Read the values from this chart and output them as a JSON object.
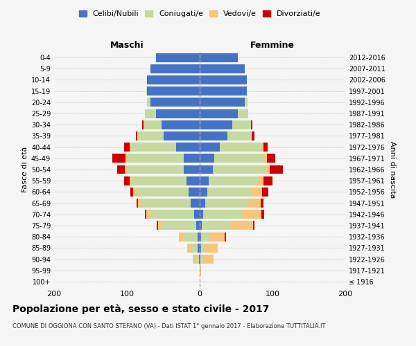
{
  "age_groups": [
    "100+",
    "95-99",
    "90-94",
    "85-89",
    "80-84",
    "75-79",
    "70-74",
    "65-69",
    "60-64",
    "55-59",
    "50-54",
    "45-49",
    "40-44",
    "35-39",
    "30-34",
    "25-29",
    "20-24",
    "15-19",
    "10-14",
    "5-9",
    "0-4"
  ],
  "birth_years": [
    "≤ 1916",
    "1917-1921",
    "1922-1926",
    "1927-1931",
    "1932-1936",
    "1937-1941",
    "1942-1946",
    "1947-1951",
    "1952-1956",
    "1957-1961",
    "1962-1966",
    "1967-1971",
    "1972-1976",
    "1977-1981",
    "1982-1986",
    "1987-1991",
    "1992-1996",
    "1997-2001",
    "2002-2006",
    "2007-2011",
    "2012-2016"
  ],
  "males": {
    "celibi": [
      0,
      0,
      1,
      3,
      3,
      5,
      8,
      12,
      15,
      18,
      22,
      22,
      32,
      50,
      52,
      60,
      68,
      72,
      72,
      68,
      60
    ],
    "coniugati": [
      0,
      0,
      4,
      8,
      18,
      48,
      60,
      68,
      72,
      75,
      78,
      78,
      62,
      35,
      25,
      15,
      4,
      1,
      0,
      0,
      0
    ],
    "vedovi": [
      0,
      0,
      5,
      6,
      8,
      4,
      5,
      5,
      4,
      3,
      3,
      2,
      2,
      1,
      0,
      0,
      0,
      0,
      0,
      0,
      0
    ],
    "divorziati": [
      0,
      0,
      0,
      0,
      0,
      2,
      2,
      2,
      4,
      8,
      10,
      18,
      8,
      2,
      2,
      0,
      0,
      0,
      0,
      0,
      0
    ]
  },
  "females": {
    "nubili": [
      0,
      0,
      1,
      2,
      2,
      3,
      5,
      8,
      10,
      12,
      18,
      20,
      28,
      38,
      45,
      52,
      62,
      65,
      65,
      62,
      52
    ],
    "coniugate": [
      0,
      0,
      4,
      5,
      10,
      38,
      52,
      58,
      62,
      68,
      72,
      68,
      58,
      32,
      25,
      15,
      4,
      0,
      0,
      0,
      0
    ],
    "vedove": [
      0,
      2,
      14,
      18,
      22,
      32,
      28,
      18,
      14,
      8,
      6,
      4,
      2,
      1,
      0,
      0,
      0,
      0,
      0,
      0,
      0
    ],
    "divorziate": [
      0,
      0,
      0,
      0,
      2,
      2,
      4,
      4,
      8,
      12,
      18,
      12,
      5,
      4,
      2,
      0,
      0,
      0,
      0,
      0,
      0
    ]
  },
  "colors": {
    "celibi": "#4472c4",
    "coniugati": "#c5d9a0",
    "vedovi": "#f5c67b",
    "divorziati": "#cc0000"
  },
  "xlim": 200,
  "title": "Popolazione per età, sesso e stato civile - 2017",
  "subtitle": "COMUNE DI OGGIONA CON SANTO STEFANO (VA) - Dati ISTAT 1° gennaio 2017 - Elaborazione TUTTITALIA.IT",
  "xlabel_left": "Maschi",
  "xlabel_right": "Femmine",
  "ylabel_left": "Fasce di età",
  "ylabel_right": "Anni di nascita",
  "legend_labels": [
    "Celibi/Nubili",
    "Coniugati/e",
    "Vedovi/e",
    "Divorziati/e"
  ],
  "bg_color": "#f5f5f5",
  "grid_color": "#cccccc"
}
